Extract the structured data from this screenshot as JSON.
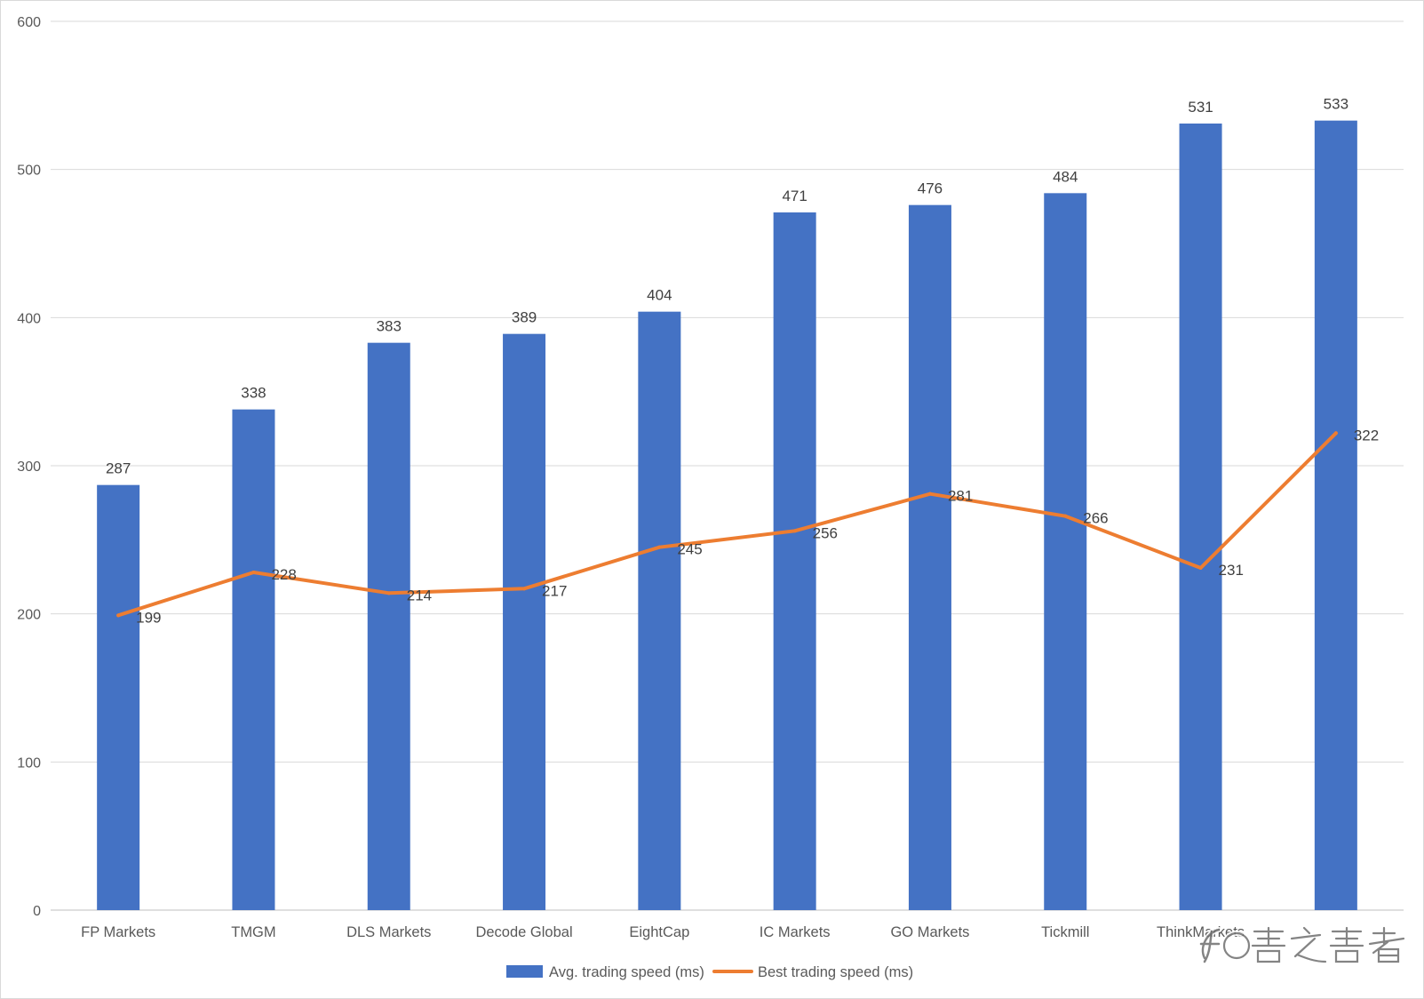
{
  "chart_data": {
    "type": "bar",
    "categories": [
      "FP Markets",
      "TMGM",
      "DLS Markets",
      "Decode Global",
      "EightCap",
      "IC Markets",
      "GO Markets",
      "Tickmill",
      "ThinkMarkets",
      ""
    ],
    "series": [
      {
        "name": "Avg. trading speed (ms)",
        "type": "bar",
        "color": "#4472C4",
        "values": [
          287,
          338,
          383,
          389,
          404,
          471,
          476,
          484,
          531,
          533
        ]
      },
      {
        "name": "Best trading speed (ms)",
        "type": "line",
        "color": "#ED7D31",
        "values": [
          199,
          228,
          214,
          217,
          245,
          256,
          281,
          266,
          231,
          322
        ]
      }
    ],
    "ylim": [
      0,
      600
    ],
    "yticks": [
      0,
      100,
      200,
      300,
      400,
      500,
      600
    ],
    "grid": true,
    "legend": "bottom-center"
  },
  "watermark": {
    "text": "@善之善者"
  },
  "colors": {
    "grid": "#D9D9D9",
    "axis": "#BFBFBF",
    "border": "#D9D9D9"
  }
}
